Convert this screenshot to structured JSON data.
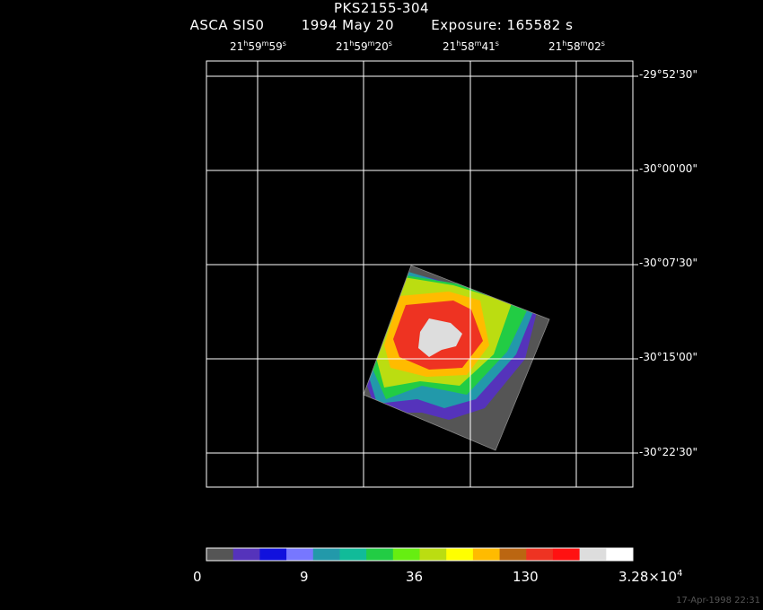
{
  "header": {
    "object": "PKS2155-304",
    "instrument": "ASCA SIS0",
    "date": "1994 May 20",
    "exposure": "Exposure: 165582 s"
  },
  "ra_labels": [
    {
      "h": "21",
      "m": "59",
      "s": "59"
    },
    {
      "h": "21",
      "m": "59",
      "s": "20"
    },
    {
      "h": "21",
      "m": "58",
      "s": "41"
    },
    {
      "h": "21",
      "m": "58",
      "s": "02"
    }
  ],
  "dec_labels": [
    "-29°52'30\"",
    "-30°00'00\"",
    "-30°07'30\"",
    "-30°15'00\"",
    "-30°22'30\""
  ],
  "colorbar": {
    "colors": [
      "#555555",
      "#5533bb",
      "#1111dd",
      "#7777ff",
      "#2299aa",
      "#11bb99",
      "#22cc44",
      "#66ee11",
      "#bbdd11",
      "#ffff00",
      "#ffbb00",
      "#bb6611",
      "#ee3322",
      "#ff1111",
      "#dddddd",
      "#ffffff"
    ],
    "labels": {
      "l0": "0",
      "l1": "9",
      "l2": "36",
      "l3": "130",
      "l4_mant": "3.28×10",
      "l4_exp": "4"
    }
  },
  "timestamp": "17-Apr-1998 22:31"
}
